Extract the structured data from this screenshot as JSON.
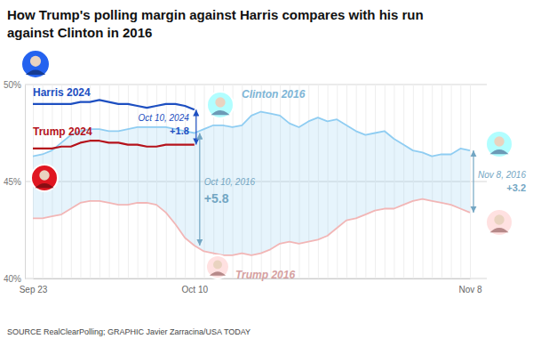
{
  "chart_data": {
    "type": "line",
    "title": "How Trump's polling margin against Harris compares with his run against Clinton in 2016",
    "source": "SOURCE RealClearPolling; GRAPHIC Javier Zarracina/USA TODAY",
    "categories": [
      "Sep 23",
      null,
      null,
      null,
      null,
      null,
      null,
      null,
      null,
      null,
      null,
      null,
      null,
      null,
      null,
      null,
      null,
      "Oct 10",
      null,
      null,
      null,
      null,
      null,
      null,
      null,
      null,
      null,
      null,
      null,
      null,
      null,
      null,
      null,
      null,
      null,
      null,
      null,
      null,
      null,
      null,
      null,
      null,
      null,
      null,
      null,
      null,
      "Nov 8"
    ],
    "series": [
      {
        "name": "Harris 2024",
        "color": "#1d4fc1",
        "values": [
          49.0,
          49.0,
          49.0,
          49.0,
          49.0,
          49.1,
          49.1,
          49.2,
          49.1,
          49.0,
          49.0,
          48.9,
          48.8,
          48.9,
          49.0,
          49.0,
          48.9,
          48.7,
          null,
          null,
          null,
          null,
          null,
          null,
          null,
          null,
          null,
          null,
          null,
          null,
          null,
          null,
          null,
          null,
          null,
          null,
          null,
          null,
          null,
          null,
          null,
          null,
          null,
          null,
          null,
          null,
          null
        ]
      },
      {
        "name": "Trump 2024",
        "color": "#b5121b",
        "values": [
          46.7,
          46.7,
          46.7,
          46.8,
          46.8,
          47.0,
          47.1,
          47.1,
          47.0,
          47.0,
          46.9,
          46.9,
          46.8,
          46.8,
          46.9,
          46.9,
          46.9,
          46.9,
          null,
          null,
          null,
          null,
          null,
          null,
          null,
          null,
          null,
          null,
          null,
          null,
          null,
          null,
          null,
          null,
          null,
          null,
          null,
          null,
          null,
          null,
          null,
          null,
          null,
          null,
          null,
          null,
          null
        ]
      },
      {
        "name": "Clinton 2016",
        "color": "#8fcdf2",
        "values": [
          46.3,
          46.4,
          46.6,
          47.0,
          47.4,
          47.6,
          47.7,
          47.7,
          47.6,
          47.6,
          47.7,
          47.8,
          47.8,
          47.8,
          47.8,
          47.7,
          47.6,
          47.5,
          47.7,
          47.9,
          47.9,
          47.8,
          47.9,
          48.4,
          48.6,
          48.5,
          48.4,
          48.0,
          47.8,
          48.1,
          48.3,
          48.1,
          48.2,
          47.9,
          47.6,
          47.4,
          47.5,
          47.6,
          47.2,
          46.9,
          46.6,
          46.5,
          46.3,
          46.4,
          46.4,
          46.7,
          46.6
        ]
      },
      {
        "name": "Trump 2016",
        "color": "#f2b6b6",
        "values": [
          43.1,
          43.1,
          43.2,
          43.3,
          43.6,
          43.9,
          44.0,
          44.0,
          43.9,
          43.8,
          43.8,
          43.9,
          43.9,
          43.8,
          43.4,
          42.8,
          42.1,
          41.7,
          41.4,
          41.3,
          41.2,
          41.2,
          41.3,
          41.2,
          41.3,
          41.5,
          41.8,
          41.9,
          41.8,
          41.9,
          42.0,
          42.2,
          42.6,
          43.0,
          43.1,
          43.3,
          43.5,
          43.6,
          43.6,
          43.8,
          44.0,
          44.1,
          44.0,
          43.9,
          43.8,
          43.6,
          43.4
        ]
      }
    ],
    "ylim": [
      40,
      50
    ],
    "yticks": [
      {
        "value": 40,
        "label": "40%"
      },
      {
        "value": 45,
        "label": "45%"
      },
      {
        "value": 50,
        "label": "50%"
      }
    ],
    "grid": true,
    "annotations": [
      {
        "label": "Oct 10, 2024",
        "value": 1.8,
        "value_label": "+1.8"
      },
      {
        "label": "Oct 10, 2016",
        "value": 5.8,
        "value_label": "+5.8"
      },
      {
        "label": "Nov 8, 2016",
        "value": 3.2,
        "value_label": "+3.2"
      }
    ]
  }
}
